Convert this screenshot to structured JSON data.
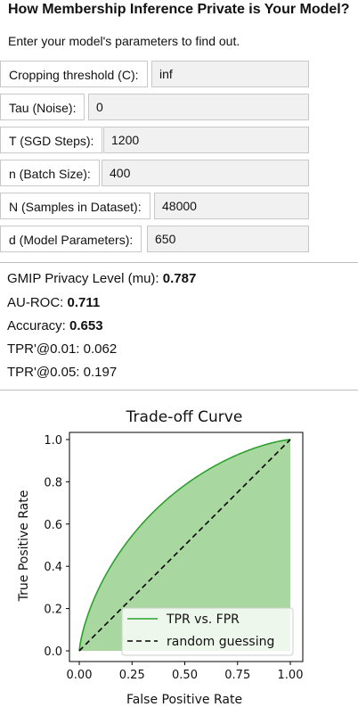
{
  "page": {
    "title": "How Membership Inference Private is Your Model?",
    "subtitle": "Enter your model's parameters to find out."
  },
  "fields": [
    {
      "label": "Cropping threshold (C):",
      "value": "inf"
    },
    {
      "label": "Tau (Noise):",
      "value": "0"
    },
    {
      "label": "T (SGD Steps):",
      "value": "1200"
    },
    {
      "label": "n (Batch Size):",
      "value": "400"
    },
    {
      "label": "N (Samples in Dataset):",
      "value": "48000"
    },
    {
      "label": "d (Model Parameters):",
      "value": "650"
    }
  ],
  "results": [
    {
      "label": "GMIP Privacy Level (mu): ",
      "value": "0.787",
      "bold": true
    },
    {
      "label": "AU-ROC: ",
      "value": "0.711",
      "bold": true
    },
    {
      "label": "Accuracy: ",
      "value": "0.653",
      "bold": true
    },
    {
      "label": "TPR'@0.01: ",
      "value": "0.062",
      "bold": false
    },
    {
      "label": "TPR'@0.05: ",
      "value": "0.197",
      "bold": false
    }
  ],
  "chart_data": {
    "type": "area",
    "title": "Trade-off Curve",
    "xlabel": "False Positive Rate",
    "ylabel": "True Positive Rate",
    "xlim": [
      0,
      1
    ],
    "ylim": [
      0,
      1
    ],
    "xticks": [
      "0.00",
      "0.25",
      "0.50",
      "0.75",
      "1.00"
    ],
    "yticks": [
      "0.0",
      "0.2",
      "0.4",
      "0.6",
      "0.8",
      "1.0"
    ],
    "legend_position": "lower-right",
    "mu": 0.787,
    "series": [
      {
        "name": "TPR vs. FPR",
        "color": "#2ca02c",
        "fill": "#a8d8a0",
        "style": "solid",
        "x": [
          0,
          0.01,
          0.05,
          0.1,
          0.2,
          0.3,
          0.4,
          0.5,
          0.6,
          0.7,
          0.8,
          0.9,
          1.0
        ],
        "y": [
          0,
          0.062,
          0.197,
          0.317,
          0.485,
          0.606,
          0.701,
          0.78,
          0.846,
          0.901,
          0.945,
          0.98,
          1.0
        ]
      },
      {
        "name": "random guessing",
        "color": "#000000",
        "style": "dashed",
        "x": [
          0,
          1
        ],
        "y": [
          0,
          1
        ]
      }
    ]
  }
}
